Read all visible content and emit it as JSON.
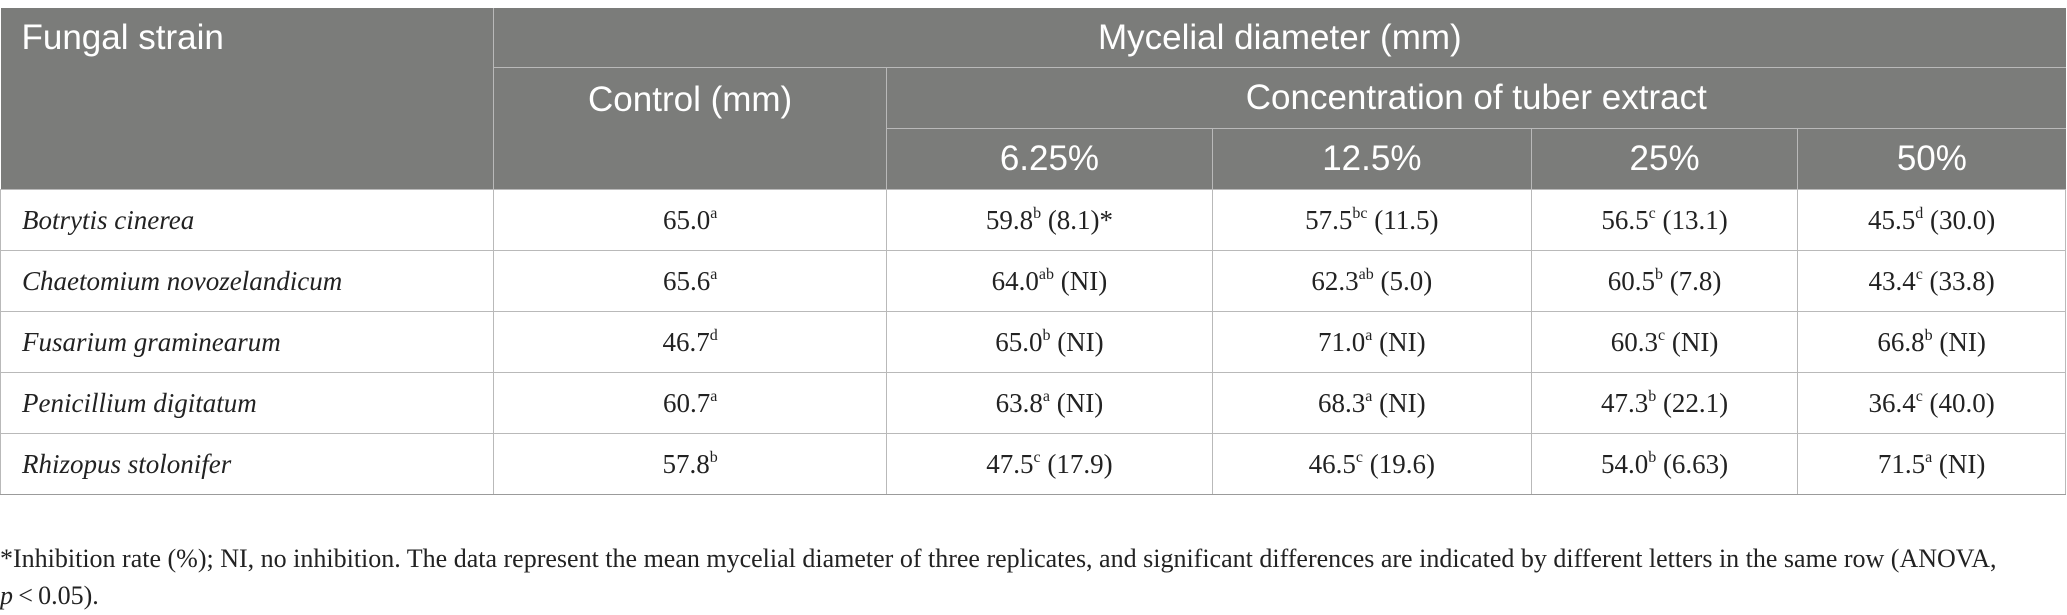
{
  "header": {
    "strain_col": "Fungal strain",
    "group_title": "Mycelial diameter (mm)",
    "control_col": "Control (mm)",
    "concentration_title": "Concentration of tuber extract",
    "concentrations": [
      "6.25%",
      "12.5%",
      "25%",
      "50%"
    ]
  },
  "rows": [
    {
      "strain": "Botrytis cinerea",
      "control": {
        "value": "65.0",
        "sup": "a"
      },
      "cells": [
        {
          "value": "59.8",
          "sup": "b",
          "rest": " (8.1)*"
        },
        {
          "value": "57.5",
          "sup": "bc",
          "rest": " (11.5)"
        },
        {
          "value": "56.5",
          "sup": "c",
          "rest": " (13.1)"
        },
        {
          "value": "45.5",
          "sup": "d",
          "rest": " (30.0)"
        }
      ]
    },
    {
      "strain": "Chaetomium novozelandicum",
      "control": {
        "value": "65.6",
        "sup": "a"
      },
      "cells": [
        {
          "value": "64.0",
          "sup": "ab",
          "rest": " (NI)"
        },
        {
          "value": "62.3",
          "sup": "ab",
          "rest": " (5.0)"
        },
        {
          "value": "60.5",
          "sup": "b",
          "rest": " (7.8)"
        },
        {
          "value": "43.4",
          "sup": "c",
          "rest": " (33.8)"
        }
      ]
    },
    {
      "strain": "Fusarium graminearum",
      "control": {
        "value": "46.7",
        "sup": "d"
      },
      "cells": [
        {
          "value": "65.0",
          "sup": "b",
          "rest": " (NI)"
        },
        {
          "value": "71.0",
          "sup": "a",
          "rest": " (NI)"
        },
        {
          "value": "60.3",
          "sup": "c",
          "rest": " (NI)"
        },
        {
          "value": "66.8",
          "sup": "b",
          "rest": " (NI)"
        }
      ]
    },
    {
      "strain": "Penicillium digitatum",
      "control": {
        "value": "60.7",
        "sup": "a"
      },
      "cells": [
        {
          "value": "63.8",
          "sup": "a",
          "rest": " (NI)"
        },
        {
          "value": "68.3",
          "sup": "a",
          "rest": " (NI)"
        },
        {
          "value": "47.3",
          "sup": "b",
          "rest": " (22.1)"
        },
        {
          "value": "36.4",
          "sup": "c",
          "rest": " (40.0)"
        }
      ]
    },
    {
      "strain": "Rhizopus stolonifer",
      "control": {
        "value": "57.8",
        "sup": "b"
      },
      "cells": [
        {
          "value": "47.5",
          "sup": "c",
          "rest": " (17.9)"
        },
        {
          "value": "46.5",
          "sup": "c",
          "rest": " (19.6)"
        },
        {
          "value": "54.0",
          "sup": "b",
          "rest": " (6.63)"
        },
        {
          "value": "71.5",
          "sup": "a",
          "rest": " (NI)"
        }
      ]
    }
  ],
  "footnote": {
    "main": "*Inhibition rate (%); NI, no inhibition. The data represent the mean mycelial diameter of three replicates, and significant differences are indicated by different letters in the same row (ANOVA,",
    "p_symbol": "p",
    "p_tail": " < 0.05)."
  }
}
